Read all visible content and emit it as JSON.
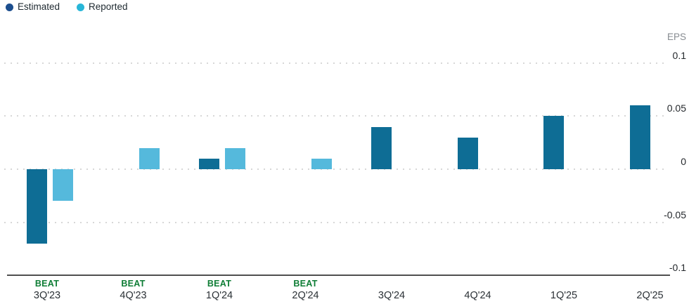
{
  "legend": {
    "items": [
      {
        "id": "estimated",
        "label": "Estimated",
        "color": "#1c4e8e"
      },
      {
        "id": "reported",
        "label": "Reported",
        "color": "#28b6d8"
      }
    ]
  },
  "y_axis": {
    "unit_label": "EPS",
    "tick_labels": [
      "0.1",
      "0.05",
      "0",
      "-0.05",
      "-0.1"
    ]
  },
  "chart_data": {
    "type": "bar",
    "title": "",
    "xlabel": "",
    "ylabel": "EPS",
    "categories": [
      "3Q'23",
      "4Q'23",
      "1Q'24",
      "2Q'24",
      "3Q'24",
      "4Q'24",
      "1Q'25",
      "2Q'25"
    ],
    "series": [
      {
        "name": "Estimated",
        "color": "#0e6d95",
        "values": [
          -0.07,
          0,
          0.01,
          0,
          0.04,
          0.03,
          0.05,
          0.06
        ]
      },
      {
        "name": "Reported",
        "color": "#55b9dc",
        "values": [
          -0.03,
          0.02,
          0.02,
          0.01,
          null,
          null,
          null,
          null
        ]
      }
    ],
    "beat_labels": [
      "BEAT",
      "BEAT",
      "BEAT",
      "BEAT",
      "",
      "",
      "",
      ""
    ],
    "beat_color": "#0e7d35",
    "ylim": [
      -0.1,
      0.1
    ],
    "y_ticks": [
      0.1,
      0.05,
      0,
      -0.05,
      -0.1
    ],
    "grid": "horizontal-dotted",
    "legend_position": "top-left"
  }
}
